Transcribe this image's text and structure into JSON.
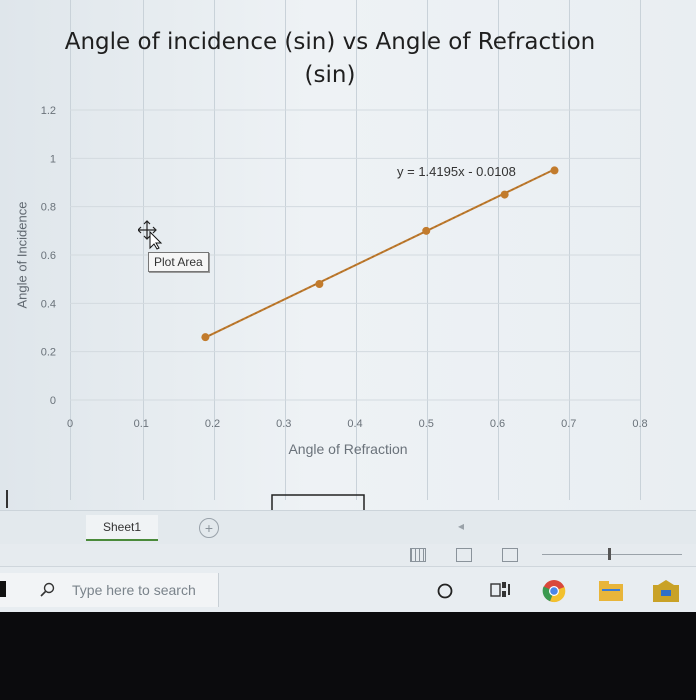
{
  "chart_data": {
    "type": "scatter",
    "title": "Angle of incidence (sin) vs Angle of Refraction (sin)",
    "xlabel": "Angle of Refraction",
    "ylabel": "Angle of Incidence",
    "xlim": [
      0,
      0.8
    ],
    "ylim": [
      0,
      1.2
    ],
    "x_ticks": [
      "0",
      "0.1",
      "0.2",
      "0.3",
      "0.4",
      "0.5",
      "0.6",
      "0.7",
      "0.8"
    ],
    "y_ticks": [
      "0",
      "0.2",
      "0.4",
      "0.6",
      "0.8",
      "1",
      "1.2"
    ],
    "series": [
      {
        "x": [
          0.19,
          0.35,
          0.5,
          0.61,
          0.68
        ],
        "y": [
          0.26,
          0.48,
          0.7,
          0.85,
          0.95
        ],
        "color": "#c27b2c"
      }
    ],
    "trendline": {
      "label": "y = 1.4195x - 0.0108",
      "slope": 1.4195,
      "intercept": -0.0108
    },
    "grid": true,
    "legend": "none",
    "tooltip": "Plot Area"
  },
  "sheets": {
    "active": "Sheet1"
  },
  "taskbar": {
    "search_placeholder": "Type here to search"
  },
  "icons": {
    "cursor": "move-cursor-icon",
    "add": "add-sheet-icon",
    "search": "search-icon",
    "cortana": "cortana-circle-icon",
    "taskview": "task-view-icon",
    "chrome": "chrome-icon",
    "files": "file-explorer-icon",
    "store": "store-icon"
  }
}
